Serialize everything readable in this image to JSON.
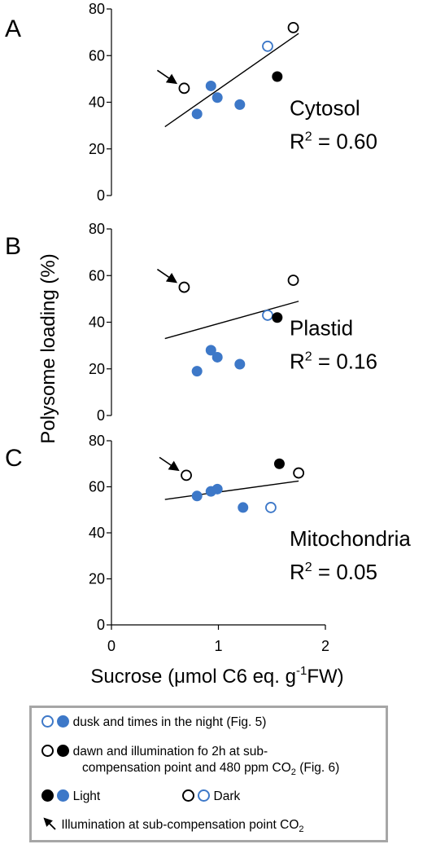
{
  "y_axis_title": "Polysome loading (%)",
  "x_axis_title_main": "Sucrose (μmol C6 eq. g",
  "x_axis_title_sup": "-1",
  "x_axis_title_end": "FW)",
  "x_ticks": [
    "0",
    "1",
    "2"
  ],
  "chart_data": [
    {
      "type": "scatter",
      "panel_letter": "A",
      "label": "Cytosol",
      "r2_prefix": "R",
      "r2_sup": "2",
      "r2_value": " = 0.60",
      "ylim": [
        0,
        80
      ],
      "xlim": [
        0,
        2
      ],
      "yticks": [
        "0",
        "20",
        "40",
        "60",
        "80"
      ],
      "points_light": [
        [
          0.8,
          35
        ],
        [
          0.93,
          47
        ],
        [
          0.99,
          42
        ],
        [
          1.2,
          39
        ]
      ],
      "points_dusk_open": [
        [
          1.46,
          64
        ]
      ],
      "points_dawn_open": [
        [
          0.68,
          46
        ],
        [
          1.7,
          72
        ]
      ],
      "points_dawn_filled": [
        [
          1.55,
          51
        ]
      ],
      "arrow_target": [
        0.68,
        46
      ],
      "trendline": [
        [
          0.5,
          29.5
        ],
        [
          1.75,
          69.5
        ]
      ]
    },
    {
      "type": "scatter",
      "panel_letter": "B",
      "label": "Plastid",
      "r2_prefix": "R",
      "r2_sup": "2",
      "r2_value": " = 0.16",
      "ylim": [
        0,
        80
      ],
      "xlim": [
        0,
        2
      ],
      "yticks": [
        "0",
        "20",
        "40",
        "60",
        "80"
      ],
      "points_light": [
        [
          0.8,
          19
        ],
        [
          0.93,
          28
        ],
        [
          0.99,
          25
        ],
        [
          1.2,
          22
        ]
      ],
      "points_dusk_open": [
        [
          1.46,
          43
        ]
      ],
      "points_dawn_open": [
        [
          0.68,
          55
        ],
        [
          1.7,
          58
        ]
      ],
      "points_dawn_filled": [
        [
          1.55,
          42
        ]
      ],
      "arrow_target": [
        0.68,
        55
      ],
      "trendline": [
        [
          0.5,
          33
        ],
        [
          1.75,
          49
        ]
      ]
    },
    {
      "type": "scatter",
      "panel_letter": "C",
      "label": "Mitochondria",
      "r2_prefix": "R",
      "r2_sup": "2",
      "r2_value": " = 0.05",
      "ylim": [
        0,
        80
      ],
      "xlim": [
        0,
        2
      ],
      "yticks": [
        "0",
        "20",
        "40",
        "60",
        "80"
      ],
      "points_light": [
        [
          0.8,
          56
        ],
        [
          0.93,
          58
        ],
        [
          0.99,
          59
        ],
        [
          1.23,
          51
        ]
      ],
      "points_dusk_open": [
        [
          1.49,
          51
        ]
      ],
      "points_dawn_open": [
        [
          0.7,
          65
        ],
        [
          1.75,
          66
        ]
      ],
      "points_dawn_filled": [
        [
          1.57,
          70
        ]
      ],
      "arrow_target": [
        0.7,
        65
      ],
      "trendline": [
        [
          0.5,
          54.5
        ],
        [
          1.75,
          62.5
        ]
      ]
    }
  ],
  "legend": {
    "row1": "dusk and times in the night (Fig. 5)",
    "row2a": "dawn and illumination fo 2h at sub-",
    "row2b_main": "compensation point and 480 ppm CO",
    "row2b_sub": "2",
    "row2b_end": " (Fig. 6)",
    "light": "Light",
    "dark": "Dark",
    "arrow_text": "Illumination at sub-compensation point CO",
    "arrow_sub": "2"
  },
  "colors": {
    "blue": "#3d78c8",
    "black": "#000000",
    "legend_border": "#a6a6a6"
  }
}
